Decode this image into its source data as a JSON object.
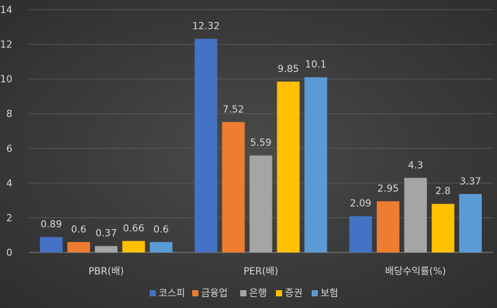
{
  "chart_data": {
    "type": "bar",
    "categories": [
      "PBR(배)",
      "PER(배)",
      "배당수익률(%)"
    ],
    "series": [
      {
        "name": "코스피",
        "color": "#4472c4",
        "values": [
          0.89,
          12.32,
          2.09
        ]
      },
      {
        "name": "금융업",
        "color": "#ed7d31",
        "values": [
          0.6,
          7.52,
          2.95
        ]
      },
      {
        "name": "은행",
        "color": "#a5a5a5",
        "values": [
          0.37,
          5.59,
          4.3
        ]
      },
      {
        "name": "증권",
        "color": "#ffc000",
        "values": [
          0.66,
          9.85,
          2.8
        ]
      },
      {
        "name": "보험",
        "color": "#5b9bd5",
        "values": [
          0.6,
          10.1,
          3.37
        ]
      }
    ],
    "data_labels": [
      [
        "0.89",
        "0.6",
        "0.37",
        "0.66",
        "0.6"
      ],
      [
        "12.32",
        "7.52",
        "5.59",
        "9.85",
        "10.1"
      ],
      [
        "2.09",
        "2.95",
        "4.3",
        "2.8",
        "3.37"
      ]
    ],
    "y_ticks": [
      "0",
      "2",
      "4",
      "6",
      "8",
      "10",
      "12",
      "14"
    ],
    "ylim": [
      0,
      14
    ],
    "grid": true,
    "legend_position": "bottom"
  }
}
